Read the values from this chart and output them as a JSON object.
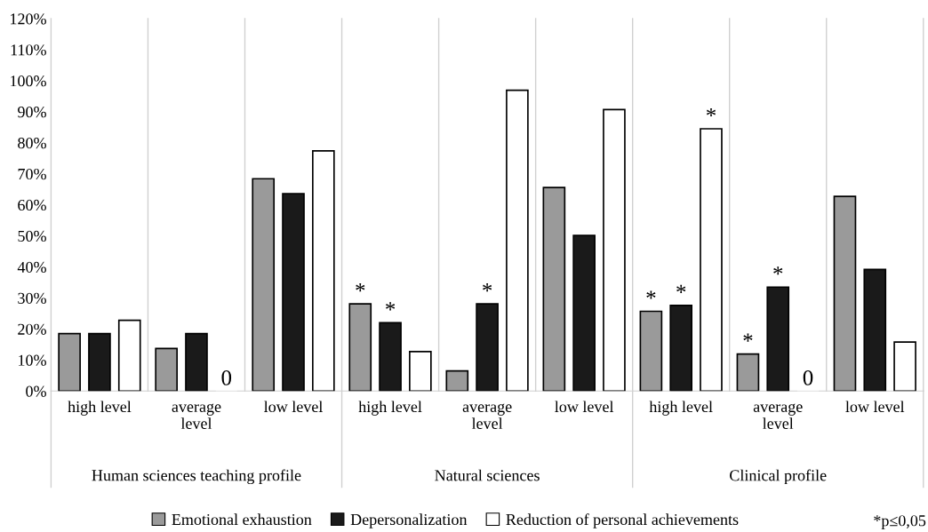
{
  "chart_data": {
    "type": "bar",
    "categories": [
      "high level",
      "average level",
      "low level",
      "high level",
      "average level",
      "low level",
      "high level",
      "average level",
      "low level"
    ],
    "series": [
      {
        "name": "Emotional exhaustion",
        "color": "#9a9a9a",
        "values": [
          18.5,
          13.7,
          68.4,
          28.1,
          6.5,
          65.6,
          25.7,
          11.9,
          62.7
        ],
        "value_labels": [
          null,
          null,
          null,
          "*",
          null,
          null,
          "*",
          "*",
          null
        ]
      },
      {
        "name": "Depersonalization",
        "color": "#1a1a1a",
        "values": [
          18.5,
          18.5,
          63.6,
          22.0,
          28.1,
          50.1,
          27.6,
          33.5,
          39.2
        ],
        "value_labels": [
          null,
          null,
          null,
          "*",
          "*",
          null,
          "*",
          "*",
          null
        ]
      },
      {
        "name": "Reduction of personal achievements",
        "color": "#ffffff",
        "values": [
          22.8,
          0,
          77.4,
          12.7,
          96.9,
          90.7,
          84.5,
          0,
          15.8
        ],
        "value_labels": [
          null,
          "0",
          null,
          null,
          null,
          null,
          "*",
          "0",
          null
        ]
      }
    ],
    "ylim": [
      0,
      120
    ],
    "yticks": [
      {
        "value": 0,
        "label": "0%"
      },
      {
        "value": 10,
        "label": "10%"
      },
      {
        "value": 20,
        "label": "20%"
      },
      {
        "value": 30,
        "label": "30%"
      },
      {
        "value": 40,
        "label": "40%"
      },
      {
        "value": 50,
        "label": "50%"
      },
      {
        "value": 60,
        "label": "60%"
      },
      {
        "value": 70,
        "label": "70%"
      },
      {
        "value": 80,
        "label": "80%"
      },
      {
        "value": 90,
        "label": "90%"
      },
      {
        "value": 100,
        "label": "100%"
      },
      {
        "value": 110,
        "label": "110%"
      },
      {
        "value": 120,
        "label": "120%"
      }
    ],
    "grid": "x",
    "legend": "bottom",
    "annotations": [
      "Human sciences teaching profile",
      "Natural sciences",
      "Clinical profile",
      "*p≤0,05"
    ]
  }
}
